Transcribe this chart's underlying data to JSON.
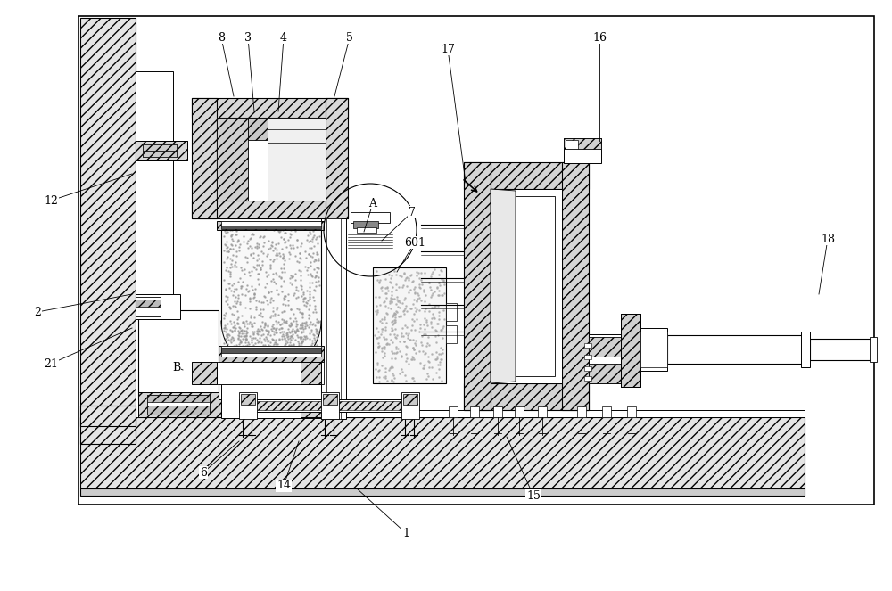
{
  "bg_color": "#ffffff",
  "lc": "#000000",
  "fig_width": 10.0,
  "fig_height": 6.63,
  "dpi": 100,
  "labels": [
    [
      "1",
      455,
      598
    ],
    [
      "2",
      42,
      350
    ],
    [
      "3",
      278,
      42
    ],
    [
      "4",
      318,
      42
    ],
    [
      "5",
      392,
      42
    ],
    [
      "6",
      228,
      530
    ],
    [
      "7",
      462,
      238
    ],
    [
      "8",
      248,
      42
    ],
    [
      "12",
      57,
      225
    ],
    [
      "14",
      318,
      545
    ],
    [
      "15",
      598,
      556
    ],
    [
      "16",
      672,
      42
    ],
    [
      "17",
      502,
      55
    ],
    [
      "18",
      928,
      268
    ],
    [
      "21",
      57,
      408
    ],
    [
      "A",
      418,
      228
    ],
    [
      "B",
      198,
      412
    ],
    [
      "601",
      465,
      272
    ]
  ],
  "leader_lines": [
    [
      "1",
      455,
      598,
      400,
      548
    ],
    [
      "2",
      42,
      350,
      148,
      330
    ],
    [
      "3",
      278,
      42,
      285,
      125
    ],
    [
      "4",
      318,
      42,
      312,
      125
    ],
    [
      "5",
      392,
      42,
      375,
      108
    ],
    [
      "6",
      228,
      530,
      268,
      495
    ],
    [
      "7",
      462,
      238,
      428,
      270
    ],
    [
      "8",
      248,
      42,
      262,
      108
    ],
    [
      "12",
      57,
      225,
      148,
      195
    ],
    [
      "14",
      318,
      545,
      335,
      495
    ],
    [
      "15",
      598,
      556,
      568,
      490
    ],
    [
      "16",
      672,
      42,
      672,
      158
    ],
    [
      "17",
      502,
      55,
      522,
      205
    ],
    [
      "18",
      928,
      268,
      918,
      330
    ],
    [
      "21",
      57,
      408,
      148,
      368
    ],
    [
      "A",
      418,
      228,
      408,
      260
    ],
    [
      "B",
      198,
      412,
      205,
      415
    ],
    [
      "601",
      465,
      272,
      445,
      305
    ]
  ]
}
